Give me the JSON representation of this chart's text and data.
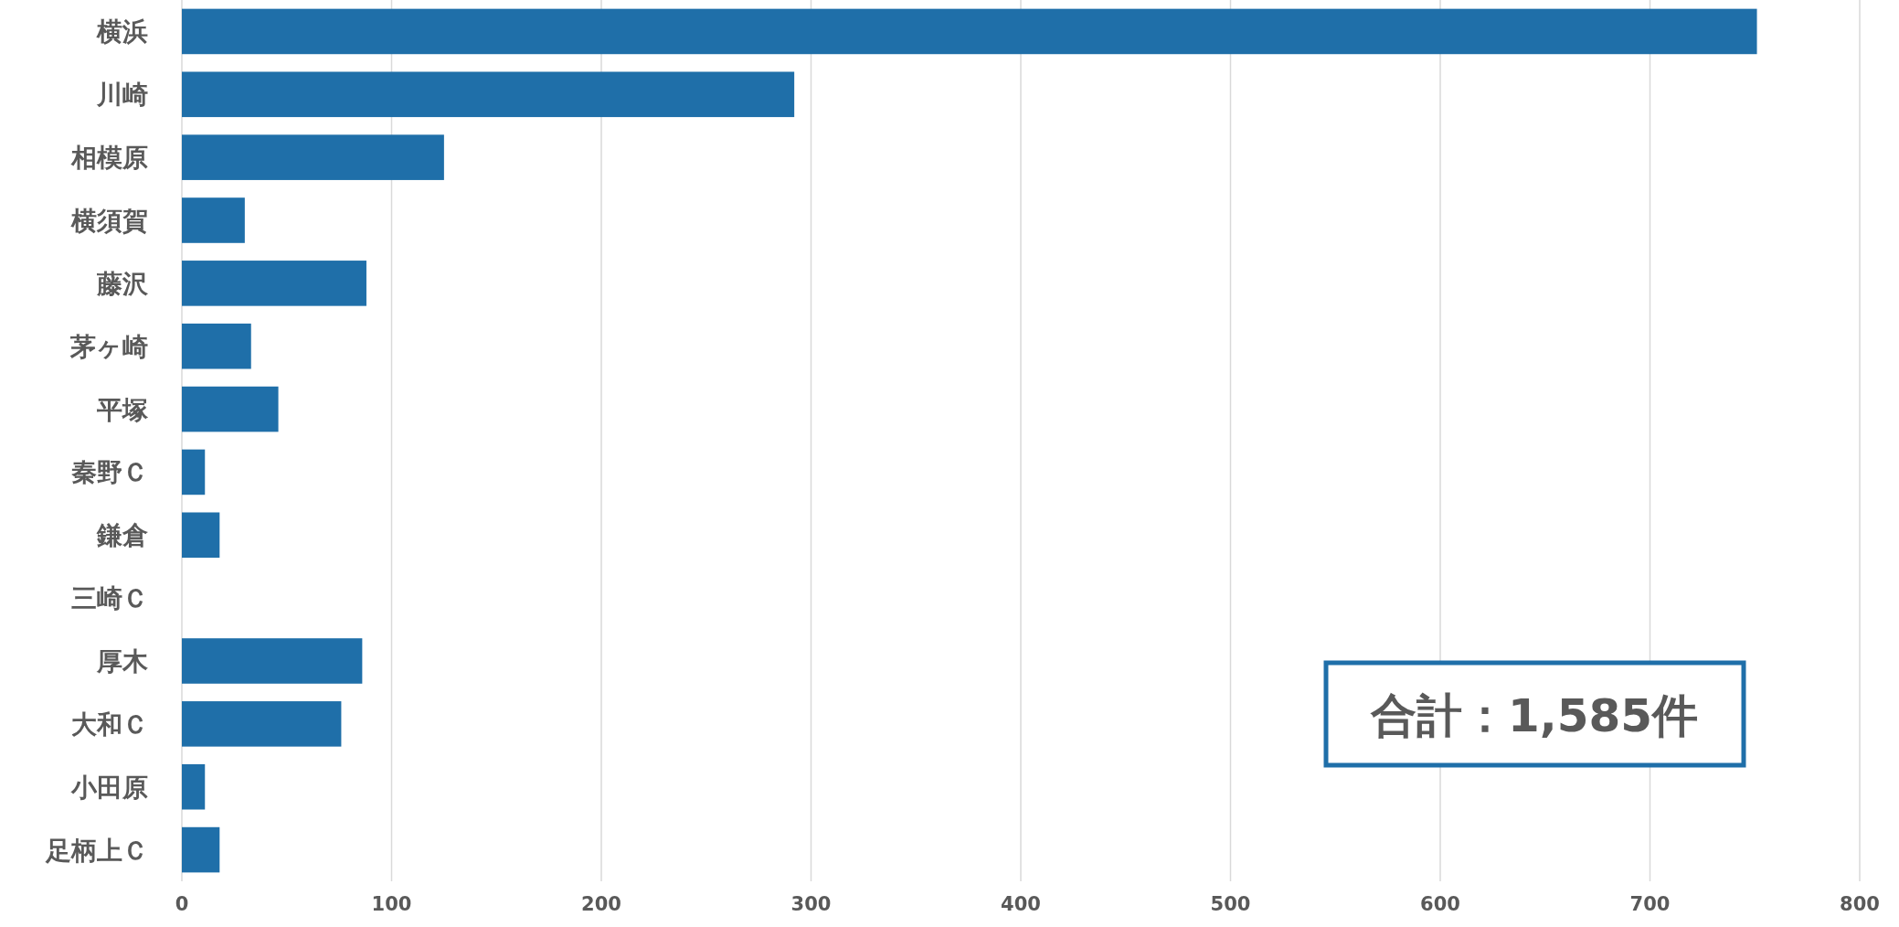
{
  "chart_data": {
    "type": "bar",
    "orientation": "horizontal",
    "categories": [
      "横浜",
      "川崎",
      "相模原",
      "横須賀",
      "藤沢",
      "茅ヶ崎",
      "平塚",
      "秦野Ｃ",
      "鎌倉",
      "三崎Ｃ",
      "厚木",
      "大和Ｃ",
      "小田原",
      "足柄上Ｃ"
    ],
    "values": [
      751,
      292,
      125,
      30,
      88,
      33,
      46,
      11,
      18,
      0,
      86,
      76,
      11,
      18
    ],
    "color": "#1f6fa9",
    "xlim": [
      0,
      800
    ],
    "xticks": [
      0,
      100,
      200,
      300,
      400,
      500,
      600,
      700,
      800
    ],
    "grid": "x",
    "annotations": [
      "合計：1,585件"
    ]
  }
}
